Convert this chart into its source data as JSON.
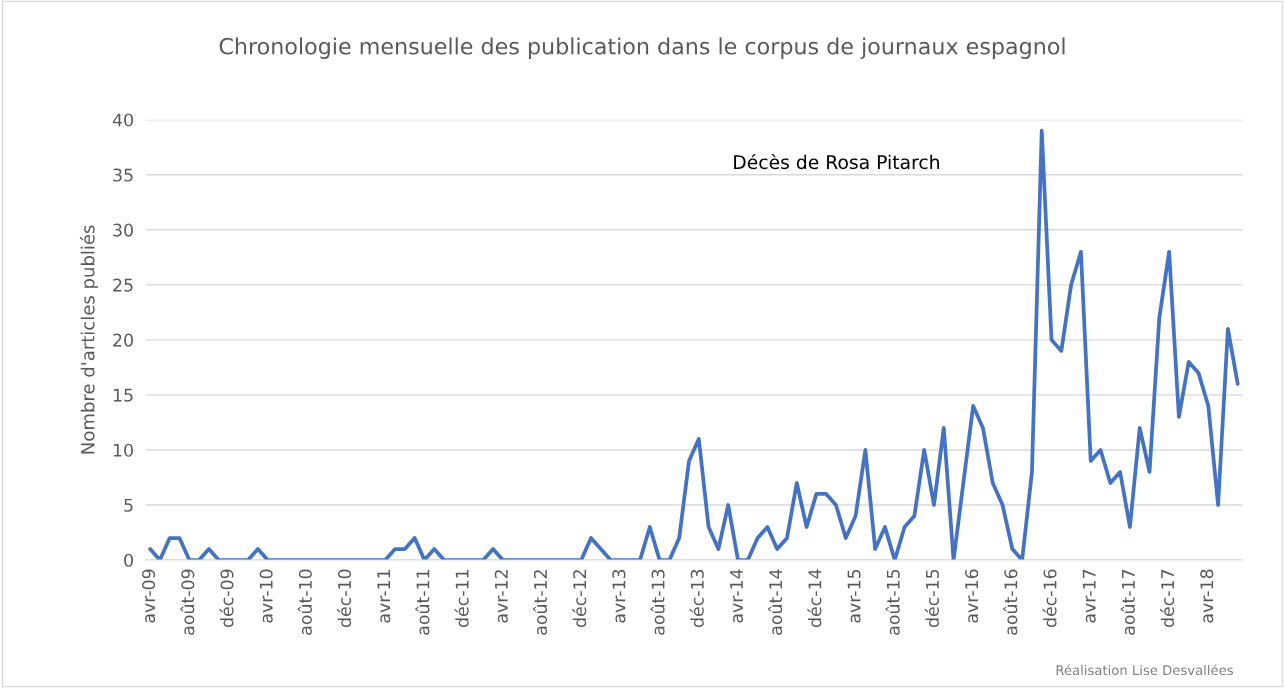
{
  "chart_data": {
    "type": "line",
    "title": "Chronologie mensuelle des publication dans le corpus de journaux espagnol",
    "ylabel": "Nombre d'articles publiés",
    "categories": [
      "avr-09",
      null,
      null,
      null,
      "août-09",
      null,
      null,
      null,
      "déc-09",
      null,
      null,
      null,
      "avr-10",
      null,
      null,
      null,
      "août-10",
      null,
      null,
      null,
      "déc-10",
      null,
      null,
      null,
      "avr-11",
      null,
      null,
      null,
      "août-11",
      null,
      null,
      null,
      "déc-11",
      null,
      null,
      null,
      "avr-12",
      null,
      null,
      null,
      "août-12",
      null,
      null,
      null,
      "déc-12",
      null,
      null,
      null,
      "avr-13",
      null,
      null,
      null,
      "août-13",
      null,
      null,
      null,
      "déc-13",
      null,
      null,
      null,
      "avr-14",
      null,
      null,
      null,
      "août-14",
      null,
      null,
      null,
      "déc-14",
      null,
      null,
      null,
      "avr-15",
      null,
      null,
      null,
      "août-15",
      null,
      null,
      null,
      "déc-15",
      null,
      null,
      null,
      "avr-16",
      null,
      null,
      null,
      "août-16",
      null,
      null,
      null,
      "déc-16",
      null,
      null,
      null,
      "avr-17",
      null,
      null,
      null,
      "août-17",
      null,
      null,
      null,
      "déc-17",
      null,
      null,
      null,
      "avr-18",
      null,
      null,
      null
    ],
    "series": [
      {
        "color": "#4472c4",
        "values": [
          1,
          0,
          2,
          2,
          0,
          0,
          1,
          0,
          0,
          0,
          0,
          1,
          0,
          0,
          0,
          0,
          0,
          0,
          0,
          0,
          0,
          0,
          0,
          0,
          0,
          1,
          1,
          2,
          0,
          1,
          0,
          0,
          0,
          0,
          0,
          1,
          0,
          0,
          0,
          0,
          0,
          0,
          0,
          0,
          0,
          2,
          1,
          0,
          0,
          0,
          0,
          3,
          0,
          0,
          2,
          9,
          11,
          3,
          1,
          5,
          0,
          0,
          2,
          3,
          1,
          2,
          7,
          3,
          6,
          6,
          5,
          2,
          4,
          10,
          1,
          3,
          0,
          3,
          4,
          10,
          5,
          12,
          0,
          7,
          14,
          12,
          7,
          5,
          1,
          0,
          8,
          39,
          20,
          19,
          25,
          28,
          9,
          10,
          7,
          8,
          3,
          12,
          8,
          22,
          28,
          13,
          18,
          17,
          14,
          5,
          21,
          16
        ]
      }
    ],
    "ylim": [
      0,
      40
    ],
    "yticks": [
      0,
      5,
      10,
      15,
      20,
      25,
      30,
      35,
      40
    ],
    "grid": "y",
    "marker": "none",
    "line_style": "solid",
    "annotations": [
      "Décès de Rosa Pitarch",
      "Réalisation Lise Desvallées"
    ]
  }
}
